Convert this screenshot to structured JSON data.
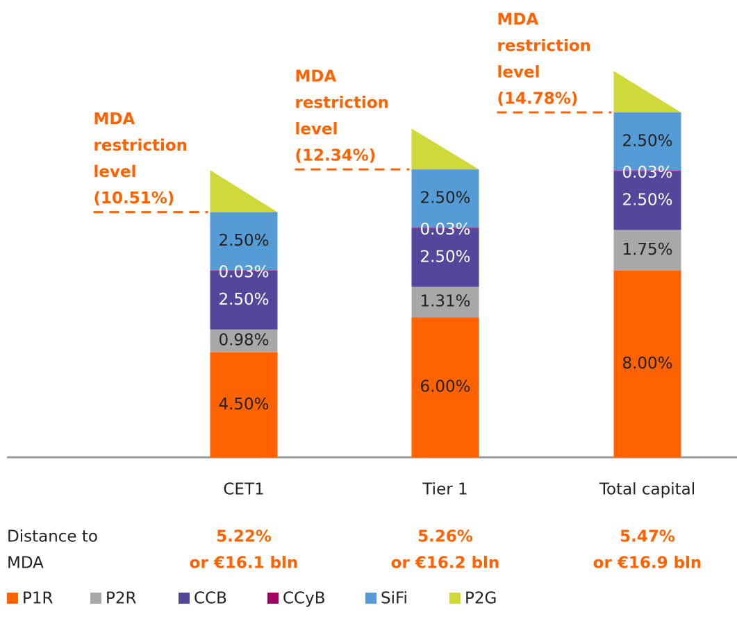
{
  "chart_data": {
    "type": "stacked_bar",
    "categories": [
      "CET1",
      "Tier 1",
      "Total capital"
    ],
    "series": [
      {
        "name": "P1R",
        "color": "#ff6200",
        "values": [
          4.5,
          6.0,
          8.0
        ],
        "value_labels": [
          "4.50%",
          "6.00%",
          "8.00%"
        ]
      },
      {
        "name": "P2R",
        "color": "#a8a8a8",
        "values": [
          0.98,
          1.31,
          1.75
        ],
        "value_labels": [
          "0.98%",
          "1.31%",
          "1.75%"
        ]
      },
      {
        "name": "CCB",
        "color": "#52479b",
        "values": [
          2.5,
          2.5,
          2.5
        ],
        "value_labels": [
          "2.50%",
          "2.50%",
          "2.50%"
        ]
      },
      {
        "name": "CCyB",
        "color": "#a50063",
        "values": [
          0.03,
          0.03,
          0.03
        ],
        "value_labels": [
          "0.03%",
          "0.03%",
          "0.03%"
        ]
      },
      {
        "name": "SiFi",
        "color": "#559bd5",
        "values": [
          2.5,
          2.5,
          2.5
        ],
        "value_labels": [
          "2.50%",
          "2.50%",
          "2.50%"
        ]
      },
      {
        "name": "P2G",
        "color": "#cfd93a",
        "values": [
          1.8,
          1.75,
          1.78
        ]
      }
    ],
    "ylim": [
      0,
      19.6
    ],
    "annotations": [
      {
        "text": [
          "MDA",
          "restriction",
          "level",
          "(10.51%)"
        ],
        "value": 10.51
      },
      {
        "text": [
          "MDA",
          "restriction",
          "level",
          "(12.34%)"
        ],
        "value": 12.34
      },
      {
        "text": [
          "MDA",
          "restriction",
          "level",
          "(14.78%)"
        ],
        "value": 14.78
      }
    ],
    "distance": {
      "label": [
        "Distance to",
        "MDA"
      ],
      "values": [
        [
          "5.22%",
          "or €16.1 bln"
        ],
        [
          "5.26%",
          "or €16.2 bln"
        ],
        [
          "5.47%",
          "or €16.9 bln"
        ]
      ]
    },
    "legend": "bottom"
  }
}
